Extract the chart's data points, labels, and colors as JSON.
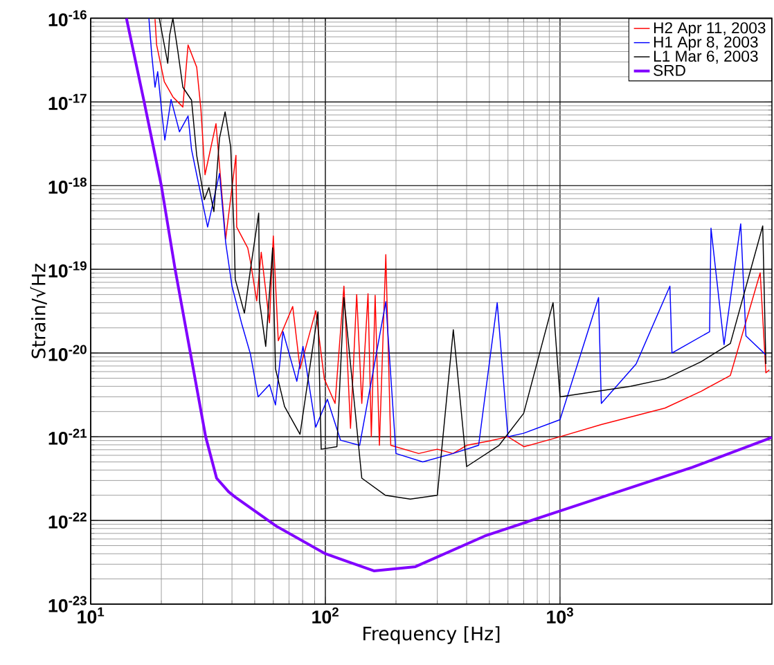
{
  "chart_data": {
    "type": "line",
    "xlabel": "Frequency [Hz]",
    "ylabel": "Strain/√Hz",
    "log": "xy",
    "grid": true,
    "legend": "top right",
    "xlim": [
      10,
      8000
    ],
    "ylim": [
      1e-23,
      1e-16
    ],
    "xticks": [
      {
        "value": 10,
        "label": "10$^{1}$"
      },
      {
        "value": 100,
        "label": "10$^{2}$"
      },
      {
        "value": 1000,
        "label": "10$^{3}$"
      }
    ],
    "yticks": [
      {
        "value": 1e-23,
        "label": "10$^{-23}$"
      },
      {
        "value": 1e-22,
        "label": "10$^{-22}$"
      },
      {
        "value": 1e-21,
        "label": "10$^{-21}$"
      },
      {
        "value": 1e-20,
        "label": "10$^{-20}$"
      },
      {
        "value": 1e-19,
        "label": "10$^{-19}$"
      },
      {
        "value": 1e-18,
        "label": "10$^{-18}$"
      },
      {
        "value": 1e-17,
        "label": "10$^{-17}$"
      },
      {
        "value": 1e-16,
        "label": "10$^{-16}$"
      }
    ],
    "series": [
      {
        "name": "H2 Apr 11, 2003",
        "color": "#ff0000",
        "x": [
          18.8,
          19.1,
          20.6,
          22.4,
          24.7,
          26,
          28.3,
          29.5,
          30.7,
          34.2,
          37.6,
          41.6,
          41.9,
          46.7,
          47.9,
          51,
          53.3,
          57.8,
          60,
          63,
          72.6,
          78,
          91,
          99,
          110,
          120,
          128,
          136,
          143,
          152,
          157,
          163,
          170,
          181,
          190,
          250,
          300,
          350,
          400,
          500,
          600,
          703,
          1000,
          1500,
          2800,
          4000,
          5320,
          7130,
          7540,
          7800
        ],
        "values": [
          9.8e-17,
          4.8e-17,
          1.74e-17,
          1.15e-17,
          8.7e-18,
          4.8e-17,
          2.6e-17,
          8.1e-18,
          1.35e-18,
          5.5e-18,
          2.3e-19,
          2.3e-18,
          3.2e-19,
          1.8e-19,
          1.26e-19,
          4.2e-20,
          1.6e-19,
          2.3e-20,
          2.5e-19,
          1.4e-20,
          3.6e-20,
          6.5e-21,
          3.2e-20,
          4.9e-21,
          2.5e-21,
          6.3e-20,
          1.26e-21,
          5e-20,
          2.5e-21,
          5.1e-20,
          1e-21,
          4.9e-20,
          7.9e-22,
          1.5e-19,
          7.9e-22,
          6.3e-22,
          7.1e-22,
          6.3e-22,
          7.9e-22,
          8.9e-22,
          1e-21,
          7.6e-22,
          1e-21,
          1.4e-21,
          2.2e-21,
          3.5e-21,
          5.4e-21,
          9.1e-20,
          5.8e-21,
          6.3e-21
        ]
      },
      {
        "name": "H1 Apr 8, 2003",
        "color": "#0000ff",
        "x": [
          17.7,
          18.2,
          18.8,
          19.3,
          20.1,
          20.7,
          22.0,
          23.9,
          26,
          26.9,
          28.3,
          31.5,
          35.4,
          37.6,
          40,
          43.9,
          47.9,
          51.7,
          57.8,
          61.3,
          66,
          75.6,
          80.3,
          91,
          102,
          116,
          140,
          181,
          200,
          260,
          350,
          450,
          540,
          600,
          700,
          1000,
          1460,
          1500,
          2110,
          2940,
          3000,
          4340,
          4400,
          5000,
          5890,
          6200,
          7540
        ],
        "values": [
          1e-16,
          3.7e-17,
          1.5e-17,
          2.3e-17,
          7.4e-18,
          3.5e-18,
          1.07e-17,
          4.4e-18,
          6.8e-18,
          2.7e-18,
          1.35e-18,
          3.2e-19,
          1.4e-18,
          2.1e-19,
          6.3e-20,
          2.3e-20,
          9.8e-21,
          3e-21,
          4.2e-21,
          2.4e-21,
          1.8e-20,
          4.6e-21,
          1.2e-20,
          1.3e-21,
          2.8e-21,
          9.1e-22,
          7.9e-22,
          4.1e-20,
          6.3e-22,
          5e-22,
          6.3e-22,
          7.9e-22,
          4e-20,
          1e-21,
          1.1e-21,
          1.6e-21,
          4.6e-20,
          2.5e-21,
          7.4e-21,
          6.3e-20,
          1e-20,
          1.8e-20,
          3.1e-19,
          1.26e-20,
          3.5e-19,
          1.6e-20,
          9.5e-21
        ]
      },
      {
        "name": "L1 Mar 6, 2003",
        "color": "#000000",
        "x": [
          19.6,
          21.3,
          21.7,
          22.4,
          23.5,
          24.7,
          26.9,
          28.3,
          30.5,
          31.9,
          33.5,
          35.4,
          37.4,
          39.5,
          40.8,
          41.3,
          45.2,
          47.9,
          52,
          52.4,
          55.7,
          59.6,
          61.3,
          67,
          78,
          93,
          96,
          112,
          120,
          143,
          180,
          230,
          300,
          351,
          400,
          550,
          700,
          934,
          1000,
          2000,
          2800,
          4000,
          5320,
          7310,
          7540
        ],
        "values": [
          1e-16,
          2.9e-17,
          6.3e-17,
          1e-16,
          4.1e-17,
          1.5e-17,
          1.05e-17,
          2.3e-18,
          6.8e-19,
          9.5e-19,
          4.9e-19,
          3.7e-18,
          7.6e-18,
          2.9e-18,
          2.9e-19,
          7.6e-20,
          3e-20,
          9.8e-20,
          4.7e-19,
          4.2e-20,
          1.2e-20,
          1.8e-19,
          6.5e-21,
          2.3e-21,
          1.07e-21,
          3.1e-20,
          7.1e-22,
          7.6e-22,
          4.6e-20,
          3.2e-22,
          2e-22,
          1.8e-22,
          2e-22,
          1.9e-20,
          4.4e-22,
          7.9e-22,
          1.9e-21,
          4e-20,
          3e-21,
          4e-21,
          4.9e-21,
          7.9e-21,
          1.3e-20,
          3.3e-19,
          7.4e-21
        ]
      },
      {
        "name": "SRD",
        "color": "#8000ff",
        "x": [
          14.2,
          16.9,
          20,
          22.9,
          26.6,
          30.9,
          34.4,
          38.7,
          41.3,
          62,
          100,
          161,
          242,
          477,
          1000,
          3660,
          8000
        ],
        "values": [
          1e-16,
          1e-17,
          1e-18,
          1e-19,
          1e-20,
          1e-21,
          3.2e-22,
          2.2e-22,
          1.9e-22,
          8.5e-23,
          4e-23,
          2.5e-23,
          2.8e-23,
          6.5e-23,
          1.3e-22,
          4.3e-22,
          9.8e-22
        ]
      }
    ]
  }
}
